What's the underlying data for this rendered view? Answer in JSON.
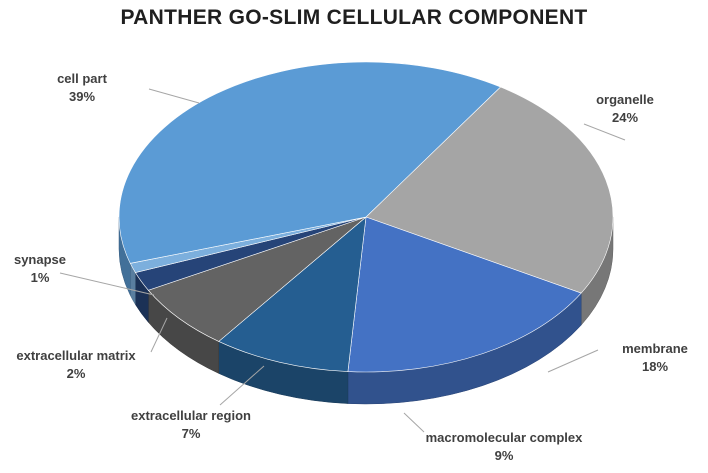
{
  "chart_data": {
    "type": "pie",
    "title": "PANTHER GO-SLIM CELLULAR COMPONENT",
    "slices": [
      {
        "label": "organelle",
        "percent_label": "24%",
        "value": 24,
        "color": "#a5a5a5"
      },
      {
        "label": "membrane",
        "percent_label": "18%",
        "value": 18,
        "color": "#4472c4"
      },
      {
        "label": "macromolecular complex",
        "percent_label": "9%",
        "value": 9,
        "color": "#255e91"
      },
      {
        "label": "extracellular region",
        "percent_label": "7%",
        "value": 7,
        "color": "#636363"
      },
      {
        "label": "extracellular matrix",
        "percent_label": "2%",
        "value": 2,
        "color": "#264478"
      },
      {
        "label": "synapse",
        "percent_label": "1%",
        "value": 1,
        "color": "#7cafdd"
      },
      {
        "label": "cell part",
        "percent_label": "39%",
        "value": 39,
        "color": "#5b9bd5"
      }
    ],
    "legend": "none"
  }
}
